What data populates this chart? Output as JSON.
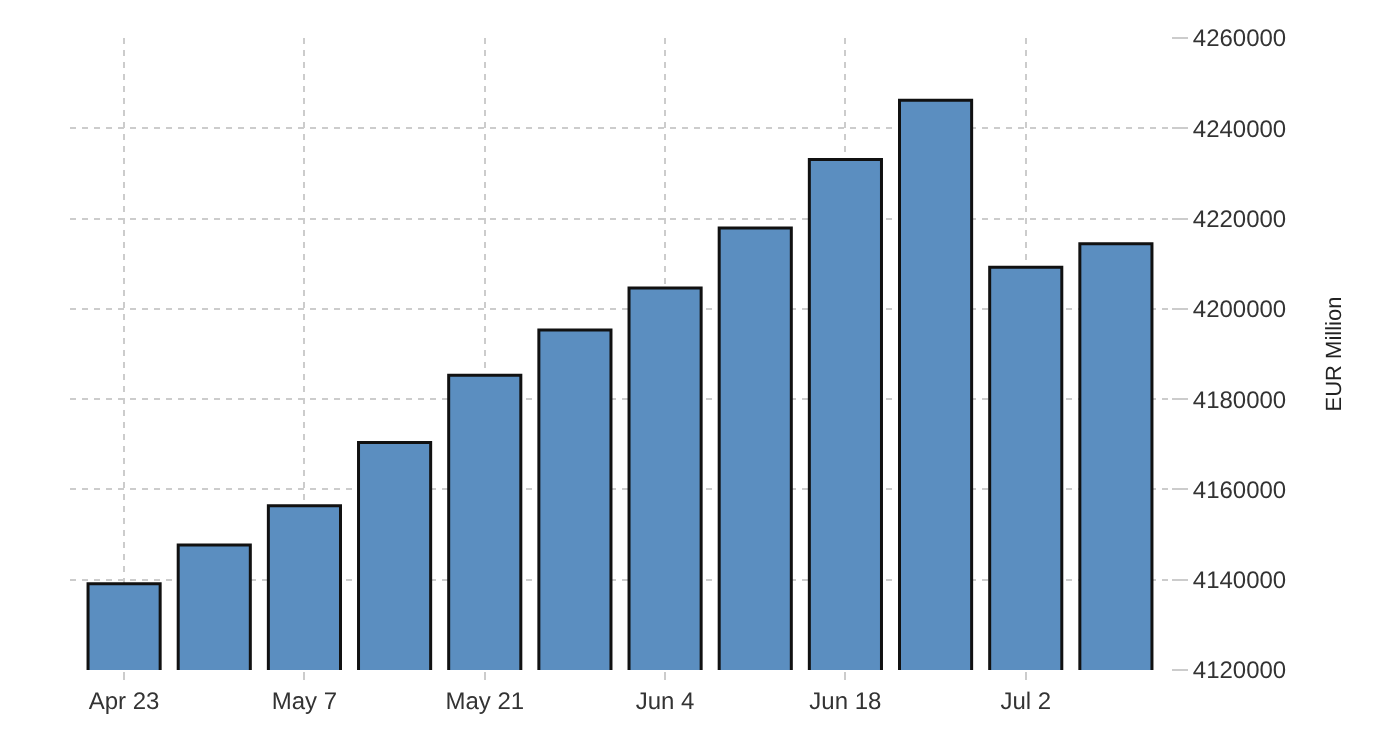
{
  "chart_data": {
    "type": "bar",
    "ylabel": "EUR Million",
    "categories": [
      "Apr 23",
      null,
      "May 7",
      null,
      "May 21",
      null,
      "Jun 4",
      null,
      "Jun 18",
      null,
      "Jul 2",
      null
    ],
    "values": [
      4139100,
      4147700,
      4156400,
      4170400,
      4185300,
      4195300,
      4204600,
      4217900,
      4233100,
      4246200,
      4209200,
      4214400
    ],
    "color": "#5b8ec0",
    "ylim": [
      4120000,
      4260000
    ],
    "yticks": [
      4120000,
      4140000,
      4160000,
      4180000,
      4200000,
      4220000,
      4240000,
      4260000
    ],
    "grid": true,
    "legend": false
  }
}
